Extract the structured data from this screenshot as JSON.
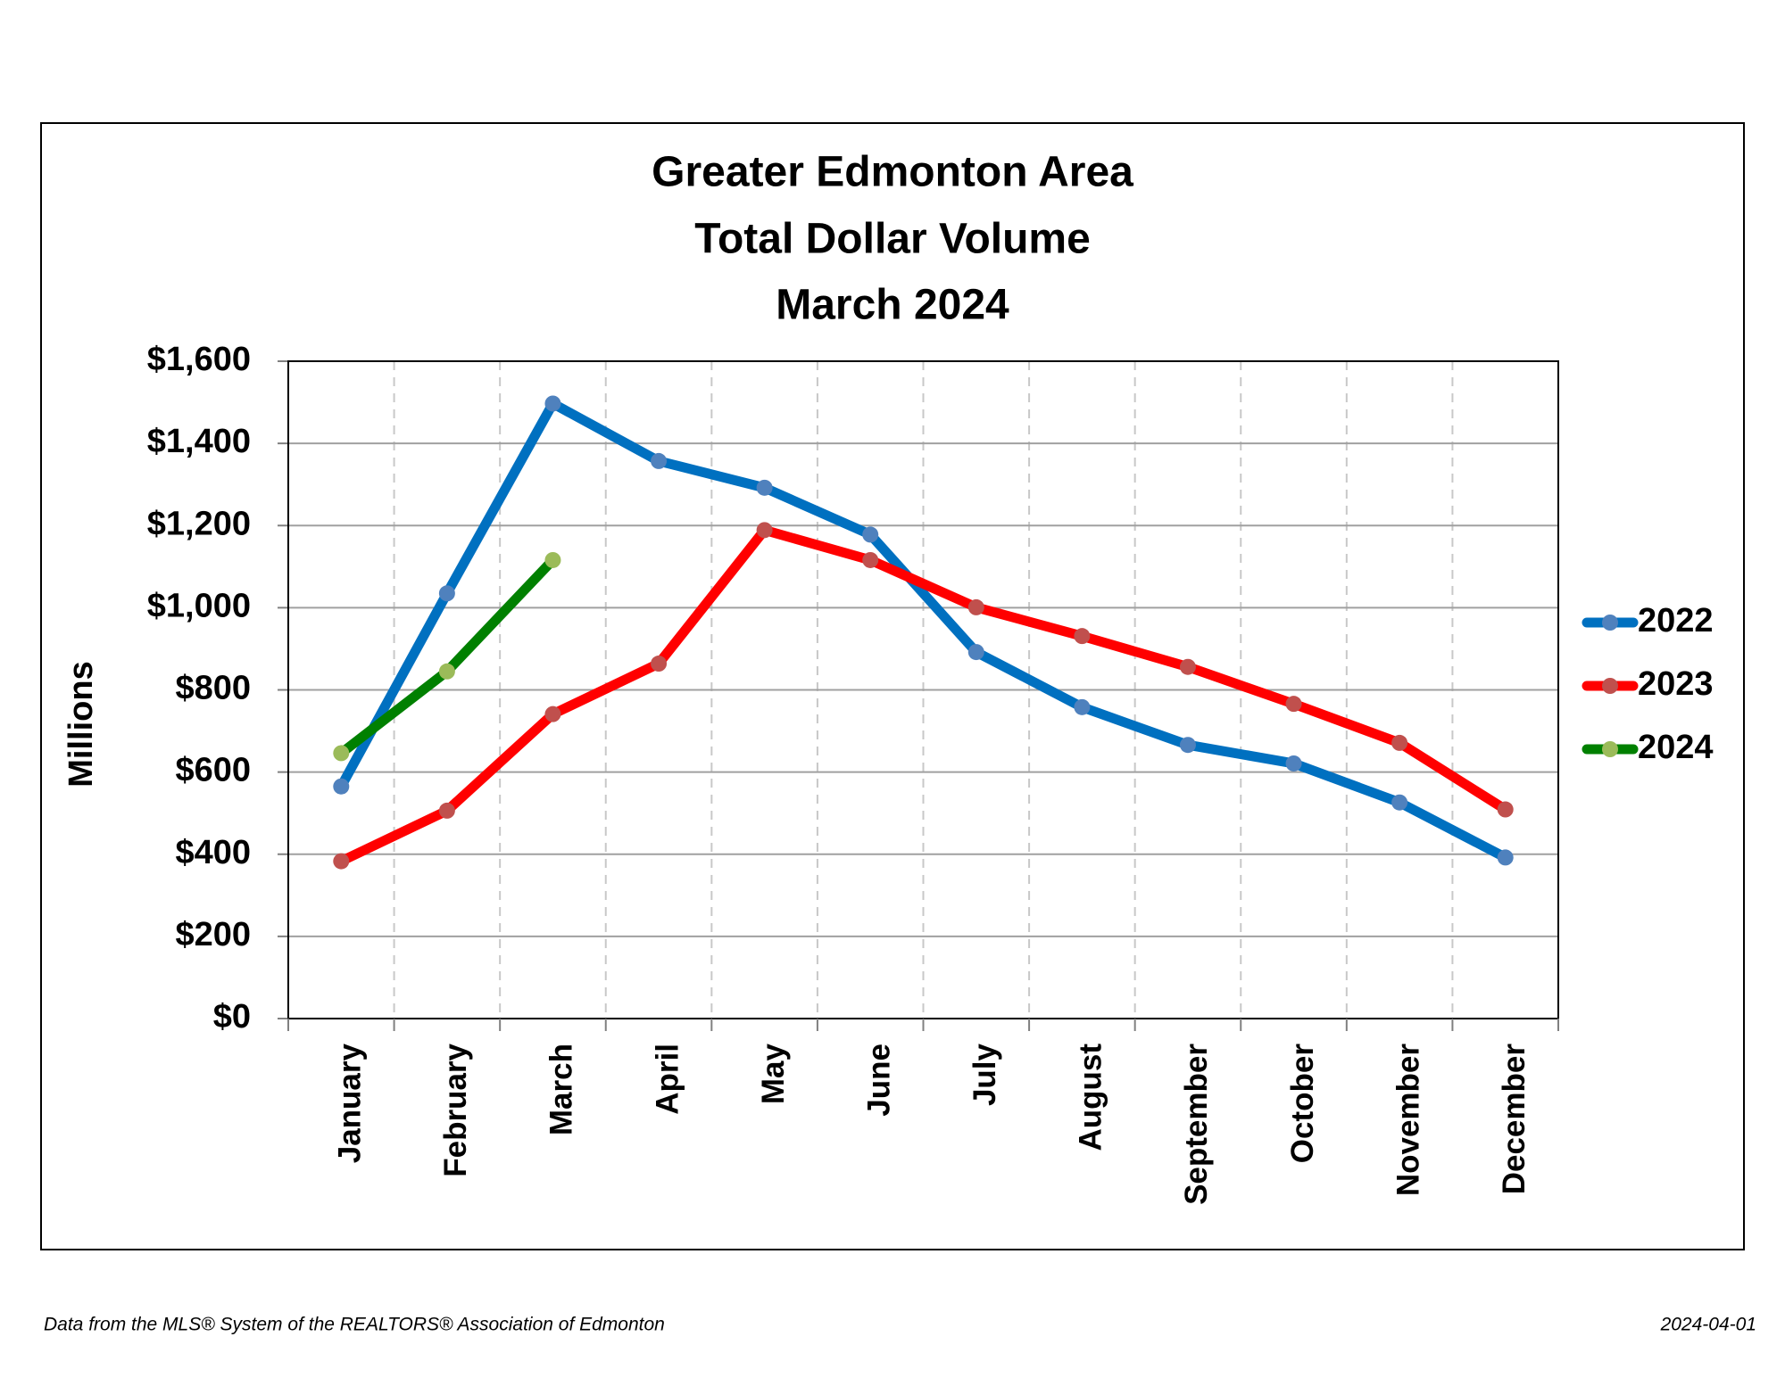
{
  "chart_data": {
    "type": "line",
    "title_lines": [
      "Greater Edmonton Area",
      "Total Dollar Volume",
      "March 2024"
    ],
    "y_label": "Millions",
    "categories": [
      "January",
      "February",
      "March",
      "April",
      "May",
      "June",
      "July",
      "August",
      "September",
      "October",
      "November",
      "December"
    ],
    "series": [
      {
        "name": "2022",
        "color": "#0070c0",
        "marker_color": "#4f81bd",
        "values": [
          565,
          1035,
          1497,
          1357,
          1292,
          1178,
          892,
          758,
          666,
          621,
          526,
          392
        ]
      },
      {
        "name": "2023",
        "color": "#ff0000",
        "marker_color": "#c0504d",
        "values": [
          383,
          506,
          741,
          864,
          1189,
          1116,
          1001,
          931,
          856,
          766,
          671,
          509
        ]
      },
      {
        "name": "2024",
        "color": "#008000",
        "marker_color": "#9bbb59",
        "values": [
          646,
          845,
          1116,
          null,
          null,
          null,
          null,
          null,
          null,
          null,
          null,
          null
        ]
      }
    ],
    "ylim": [
      0,
      1600
    ],
    "yticks": [
      {
        "value": 0,
        "label": "$0"
      },
      {
        "value": 200,
        "label": "$200"
      },
      {
        "value": 400,
        "label": "$400"
      },
      {
        "value": 600,
        "label": "$600"
      },
      {
        "value": 800,
        "label": "$800"
      },
      {
        "value": 1000,
        "label": "$1,000"
      },
      {
        "value": 1200,
        "label": "$1,200"
      },
      {
        "value": 1400,
        "label": "$1,400"
      },
      {
        "value": 1600,
        "label": "$1,600"
      }
    ],
    "grid": true,
    "legend": "right",
    "footer_left": "Data from the MLS® System of the REALTORS® Association of Edmonton",
    "footer_right": "2024-04-01"
  }
}
